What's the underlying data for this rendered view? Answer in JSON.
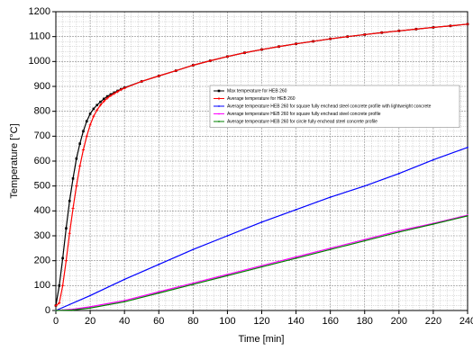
{
  "chart_data": {
    "type": "line",
    "xlabel": "Time [min]",
    "ylabel": "Temperature [°C]",
    "xlim": [
      0,
      240
    ],
    "xticks": [
      0,
      20,
      40,
      60,
      80,
      100,
      120,
      140,
      160,
      180,
      200,
      220,
      240
    ],
    "ylim": [
      0,
      1200
    ],
    "yticks": [
      0,
      100,
      200,
      300,
      400,
      500,
      600,
      700,
      800,
      900,
      1000,
      1100,
      1200
    ],
    "grid": true,
    "minor_grid": true,
    "legend": "upper right",
    "series": [
      {
        "name": "Max temperature for HEB 260",
        "color": "#000000",
        "marker": "square",
        "x": [
          0,
          2,
          4,
          6,
          8,
          10,
          12,
          14,
          16,
          18,
          20,
          22,
          24,
          26,
          28,
          30,
          32,
          34,
          36,
          38,
          40,
          50,
          60,
          70,
          80,
          90,
          100,
          110,
          120,
          130,
          140,
          150,
          160,
          170,
          180,
          190,
          200,
          210,
          220,
          230,
          240
        ],
        "values": [
          20,
          100,
          210,
          330,
          440,
          530,
          610,
          670,
          720,
          760,
          790,
          810,
          825,
          838,
          850,
          860,
          868,
          875,
          882,
          889,
          895,
          920,
          942,
          963,
          985,
          1003,
          1020,
          1035,
          1048,
          1060,
          1071,
          1081,
          1091,
          1100,
          1108,
          1116,
          1123,
          1130,
          1137,
          1143,
          1150
        ]
      },
      {
        "name": "Average temperature for HEB 260",
        "color": "#ff0000",
        "marker": "plus",
        "x": [
          0,
          2,
          4,
          6,
          8,
          10,
          12,
          14,
          16,
          18,
          20,
          22,
          24,
          26,
          28,
          30,
          32,
          34,
          36,
          38,
          40,
          50,
          60,
          70,
          80,
          90,
          100,
          110,
          120,
          130,
          140,
          150,
          160,
          170,
          180,
          190,
          200,
          210,
          220,
          230,
          240
        ],
        "values": [
          20,
          30,
          100,
          200,
          310,
          410,
          500,
          580,
          645,
          700,
          745,
          780,
          805,
          825,
          840,
          853,
          863,
          871,
          879,
          887,
          893,
          920,
          942,
          963,
          985,
          1003,
          1020,
          1035,
          1048,
          1060,
          1071,
          1081,
          1091,
          1100,
          1108,
          1116,
          1123,
          1130,
          1137,
          1143,
          1150
        ]
      },
      {
        "name": "Average temperature HEB 260 for square fully enchead steel concrete profile with lightweight concrete",
        "color": "#0000ff",
        "marker": "dot",
        "x": [
          0,
          20,
          40,
          60,
          80,
          100,
          120,
          140,
          160,
          180,
          200,
          220,
          240
        ],
        "values": [
          0,
          60,
          125,
          185,
          245,
          300,
          355,
          405,
          455,
          500,
          550,
          605,
          655
        ]
      },
      {
        "name": "Average temperature HEB 260 for square fully enchead steel concrete profile",
        "color": "#ff00ff",
        "marker": "dot",
        "x": [
          0,
          10,
          20,
          40,
          60,
          80,
          100,
          120,
          140,
          160,
          180,
          200,
          220,
          240
        ],
        "values": [
          0,
          5,
          15,
          40,
          75,
          110,
          145,
          180,
          215,
          250,
          285,
          320,
          350,
          383
        ]
      },
      {
        "name": "Average temperature HEB 260 for circle fully enchead steel concrete profile",
        "color": "#008000",
        "marker": "dot",
        "x": [
          0,
          10,
          20,
          40,
          60,
          80,
          100,
          120,
          140,
          160,
          180,
          200,
          220,
          240
        ],
        "values": [
          0,
          2,
          10,
          35,
          70,
          105,
          140,
          175,
          210,
          245,
          280,
          315,
          347,
          380
        ]
      }
    ]
  }
}
